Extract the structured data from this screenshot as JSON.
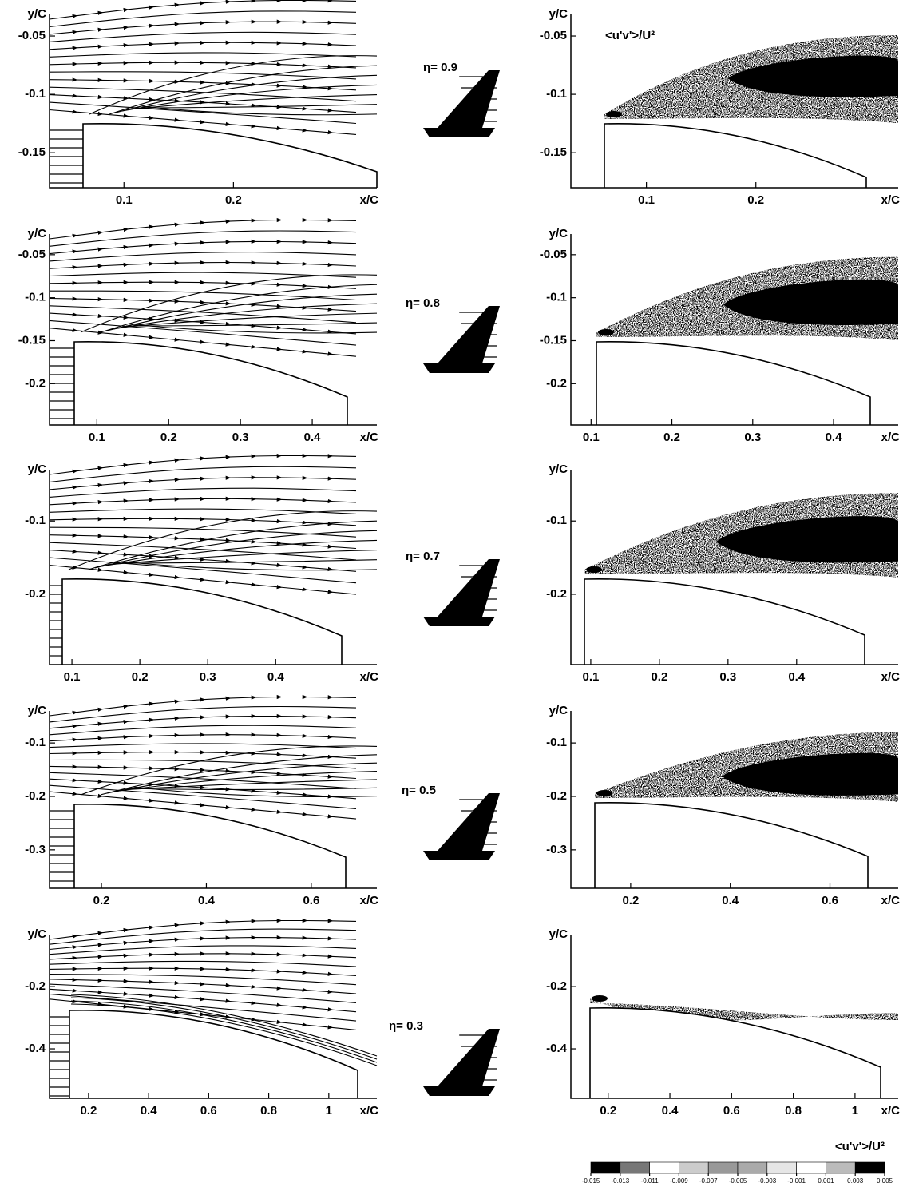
{
  "chart_data": [
    {
      "type": "streamline",
      "xlabel": "x/C",
      "ylabel": "y/C",
      "annotation": "η= 0.9",
      "xlim": [
        0.032,
        0.331
      ],
      "ylim": [
        -0.18,
        -0.0315
      ],
      "xticks": [
        0.1,
        0.2
      ],
      "yticks": [
        -0.05,
        -0.1,
        -0.15
      ]
    },
    {
      "type": "contour",
      "xlabel": "x/C",
      "ylabel": "y/C",
      "annotation": "<u'v'>/U²",
      "xlim": [
        0.031,
        0.33
      ],
      "ylim": [
        -0.18,
        -0.0315
      ],
      "xticks": [
        0.1,
        0.2
      ],
      "yticks": [
        -0.05,
        -0.1,
        -0.15
      ]
    },
    {
      "type": "streamline",
      "xlabel": "x/C",
      "ylabel": "y/C",
      "annotation": "η= 0.8",
      "xlim": [
        0.034,
        0.49
      ],
      "ylim": [
        -0.248,
        -0.026
      ],
      "xticks": [
        0.1,
        0.2,
        0.3,
        0.4
      ],
      "yticks": [
        -0.05,
        -0.1,
        -0.15,
        -0.2
      ]
    },
    {
      "type": "contour",
      "xlabel": "x/C",
      "ylabel": "y/C",
      "xlim": [
        0.075,
        0.48
      ],
      "ylim": [
        -0.248,
        -0.026
      ],
      "xticks": [
        0.1,
        0.2,
        0.3,
        0.4
      ],
      "yticks": [
        -0.05,
        -0.1,
        -0.15,
        -0.2
      ]
    },
    {
      "type": "streamline",
      "xlabel": "x/C",
      "ylabel": "y/C",
      "annotation": "η= 0.7",
      "xlim": [
        0.067,
        0.549
      ],
      "ylim": [
        -0.296,
        -0.03
      ],
      "xticks": [
        0.1,
        0.2,
        0.3,
        0.4
      ],
      "yticks": [
        -0.1,
        -0.2
      ]
    },
    {
      "type": "contour",
      "xlabel": "x/C",
      "ylabel": "y/C",
      "xlim": [
        0.071,
        0.548
      ],
      "ylim": [
        -0.296,
        -0.03
      ],
      "xticks": [
        0.1,
        0.2,
        0.3,
        0.4
      ],
      "yticks": [
        -0.1,
        -0.2
      ]
    },
    {
      "type": "streamline",
      "xlabel": "x/C",
      "ylabel": "y/C",
      "annotation": "η= 0.5",
      "xlim": [
        0.101,
        0.725
      ],
      "ylim": [
        -0.372,
        -0.04
      ],
      "xticks": [
        0.2,
        0.4,
        0.6
      ],
      "yticks": [
        -0.1,
        -0.2,
        -0.3
      ]
    },
    {
      "type": "contour",
      "xlabel": "x/C",
      "ylabel": "y/C",
      "xlim": [
        0.08,
        0.737
      ],
      "ylim": [
        -0.372,
        -0.04
      ],
      "xticks": [
        0.2,
        0.4,
        0.6
      ],
      "yticks": [
        -0.1,
        -0.2,
        -0.3
      ]
    },
    {
      "type": "streamline",
      "xlabel": "x/C",
      "ylabel": "y/C",
      "annotation": "η= 0.3",
      "xlim": [
        0.07,
        1.16
      ],
      "ylim": [
        -0.559,
        -0.033
      ],
      "xticks": [
        0.2,
        0.4,
        0.6,
        0.8,
        1
      ],
      "yticks": [
        -0.2,
        -0.4
      ]
    },
    {
      "type": "contour",
      "xlabel": "x/C",
      "ylabel": "y/C",
      "xlim": [
        0.079,
        1.14
      ],
      "ylim": [
        -0.559,
        -0.033
      ],
      "xticks": [
        0.2,
        0.4,
        0.6,
        0.8,
        1
      ],
      "yticks": [
        -0.2,
        -0.4
      ]
    },
    {
      "type": "colorbar",
      "title": "<u'v'>/U²",
      "ticks": [
        -0.015,
        -0.013,
        -0.011,
        -0.009,
        -0.007,
        -0.005,
        -0.003,
        -0.001,
        0.001,
        0.003,
        0.005
      ],
      "colors": [
        "#000000",
        "#777777",
        "#ffffff",
        "#cccccc",
        "#999999",
        "#aaaaaa",
        "#e6e6e6",
        "#ffffff",
        "#bbbbbb",
        "#000000"
      ]
    }
  ]
}
